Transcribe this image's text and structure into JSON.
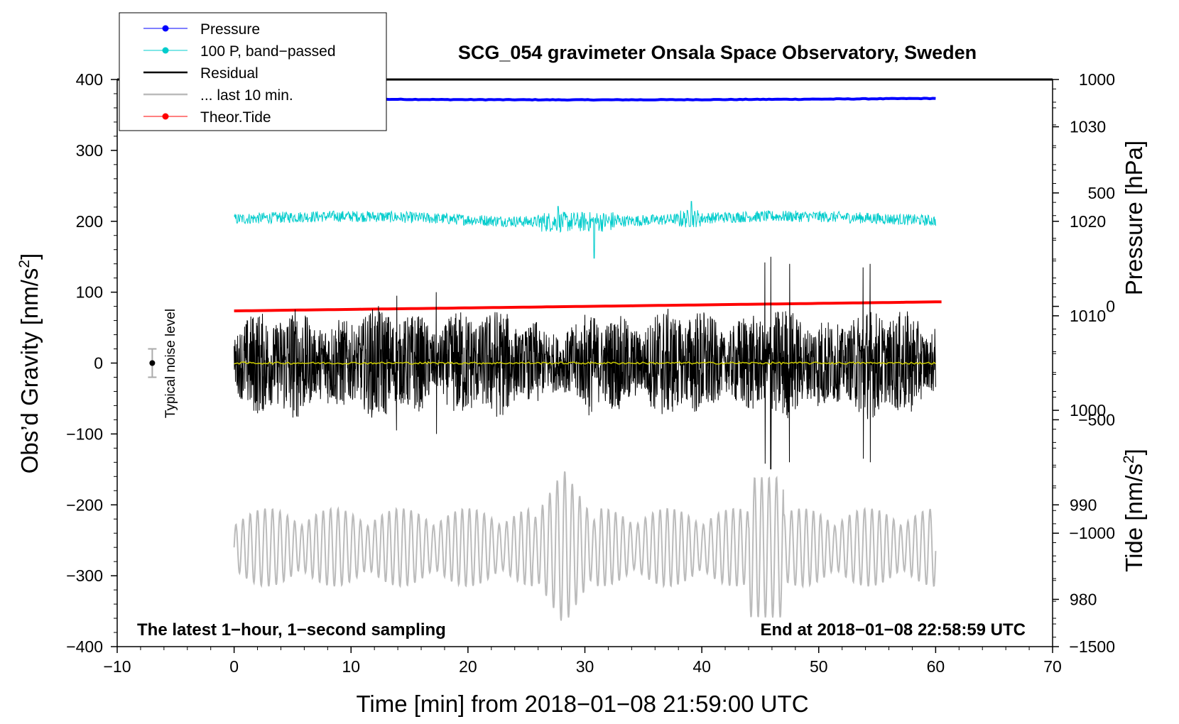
{
  "chart_data": {
    "type": "line",
    "title": "SCG_054 gravimeter Onsala Space Observatory, Sweden",
    "xlabel": "Time [min] from 2018−01−08 21:59:00 UTC",
    "ylabel_left": "Obs’d Gravity [nm/s",
    "ylabel_left_sup": "2",
    "ylabel_left_close": "]",
    "ylabel_right_pressure": "Pressure [hPa]",
    "ylabel_right_tide": "Tide [nm/s",
    "ylabel_right_tide_sup": "2",
    "ylabel_right_tide_close": "]",
    "xlim": [
      -10,
      70
    ],
    "ylim_left": [
      -400,
      400
    ],
    "pressure_axis_range": [
      975,
      1035
    ],
    "tide_axis_range": [
      -1500,
      1000
    ],
    "x_ticks": [
      "−10",
      "0",
      "10",
      "20",
      "30",
      "40",
      "50",
      "60",
      "70"
    ],
    "y_ticks_left": [
      "400",
      "300",
      "200",
      "100",
      "0",
      "−100",
      "−200",
      "−300",
      "−400"
    ],
    "y_ticks_pressure": [
      "1030",
      "1020",
      "1010",
      "1000",
      "990",
      "980"
    ],
    "y_ticks_tide": [
      "1000",
      "500",
      "0",
      "−500",
      "−1000",
      "−1500"
    ],
    "annotation_left": "The latest 1−hour, 1−second sampling",
    "annotation_right": "End at 2018−01−08 22:58:59 UTC",
    "noise_label": "Typical noise level",
    "noise_bar": {
      "x": -7,
      "center": 0,
      "half_range": 20
    },
    "legend": [
      {
        "label": "Pressure",
        "color": "#0000ff",
        "marker": true,
        "width": 1
      },
      {
        "label": "100 P, band−passed",
        "color": "#00cccc",
        "marker": true,
        "width": 1
      },
      {
        "label": "Residual",
        "color": "#000000",
        "marker": false,
        "width": 2
      },
      {
        "label": "... last 10 min.",
        "color": "#bbbbbb",
        "marker": false,
        "width": 2
      },
      {
        "label": "Theor.Tide",
        "color": "#ff0000",
        "marker": true,
        "width": 1
      }
    ],
    "series": [
      {
        "name": "Pressure",
        "color": "#0000ff",
        "axis": "pressure",
        "x_range": [
          0,
          60
        ],
        "start": 1033.0,
        "end": 1033.0
      },
      {
        "name": "100 P, band−passed",
        "color": "#00cccc",
        "axis": "left",
        "x_range": [
          0,
          60
        ],
        "baseline": 203,
        "typical_amplitude": 8,
        "peak_amplitude": 25
      },
      {
        "name": "Residual",
        "color": "#000000",
        "axis": "left",
        "x_range": [
          0,
          60
        ],
        "baseline": 0,
        "typical_amplitude": 60,
        "peak_amplitude": 150
      },
      {
        "name": "Residual smoothed",
        "color": "#cccc00",
        "axis": "left",
        "x_range": [
          0,
          60
        ],
        "baseline": 0
      },
      {
        "name": "... last 10 min.",
        "color": "#bbbbbb",
        "axis": "left",
        "x_range": [
          0,
          60
        ],
        "baseline": -260,
        "typical_amplitude": 55,
        "peak_amplitude": 110
      },
      {
        "name": "Theor.Tide",
        "color": "#ff0000",
        "axis": "tide",
        "x_range": [
          0,
          60.5
        ],
        "start": -20,
        "end": 20
      }
    ]
  }
}
